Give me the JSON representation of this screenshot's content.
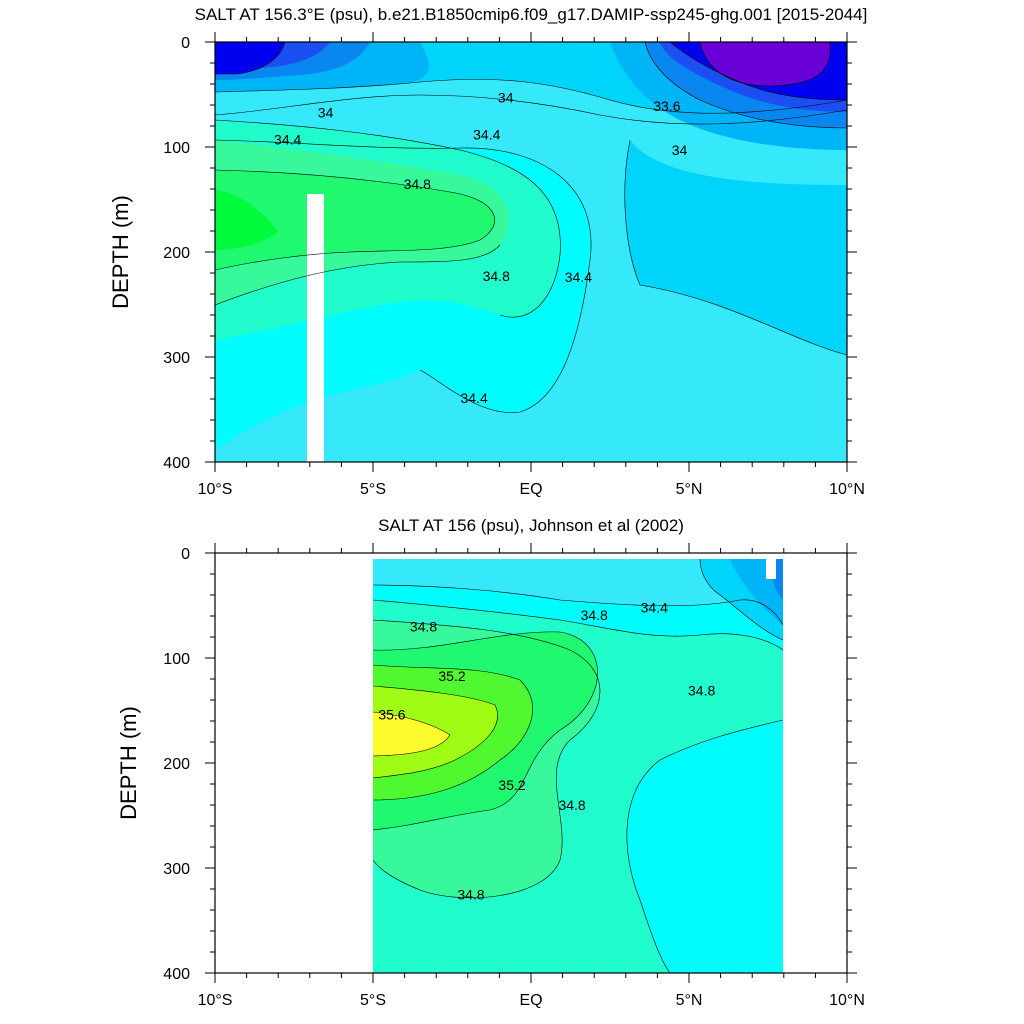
{
  "chart_data": [
    {
      "type": "heatmap",
      "title": "SALT AT 156.3°E (psu), b.e21.B1850cmip6.f09_g17.DAMIP-ssp245-ghg.001 [2015-2044]",
      "ylabel": "DEPTH (m)",
      "xlabel": "",
      "xlim": [
        -10,
        10
      ],
      "ylim": [
        0,
        400
      ],
      "y_reversed": true,
      "x_ticks": [
        -10,
        -5,
        0,
        5,
        10
      ],
      "x_tick_labels": [
        "10°S",
        "5°S",
        "EQ",
        "5°N",
        "10°N"
      ],
      "y_ticks": [
        0,
        100,
        200,
        300,
        400
      ],
      "y_tick_labels": [
        "0",
        "100",
        "200",
        "300",
        "400"
      ],
      "contour_labels": [
        {
          "text": "34",
          "x": -6.5,
          "y": 67
        },
        {
          "text": "34",
          "x": -0.8,
          "y": 53
        },
        {
          "text": "33.6",
          "x": 4.3,
          "y": 61
        },
        {
          "text": "34.4",
          "x": -7.7,
          "y": 93
        },
        {
          "text": "34.4",
          "x": -1.4,
          "y": 88
        },
        {
          "text": "34",
          "x": 4.7,
          "y": 103
        },
        {
          "text": "34.8",
          "x": -3.6,
          "y": 135
        },
        {
          "text": "34.8",
          "x": -1.1,
          "y": 223
        },
        {
          "text": "34.4",
          "x": 1.5,
          "y": 224
        },
        {
          "text": "34.4",
          "x": -1.8,
          "y": 339
        }
      ],
      "colors": {
        "deep_violet": "#6a00d8",
        "blue": "#0000f0",
        "royal_blue": "#1b4ff2",
        "medium_blue": "#0a86f0",
        "sky_blue": "#00b4f8",
        "light_blue": "#00d4fa",
        "aqua": "#35e8fa",
        "cyan": "#00fcfc",
        "aquamarine": "#20fccc",
        "sea_green": "#38f89c",
        "green": "#20f870",
        "bright_green": "#00fa3c"
      },
      "missing_band": {
        "x": [
          -7.1,
          -6.6
        ],
        "y": [
          145,
          400
        ]
      }
    },
    {
      "type": "heatmap",
      "title": "SALT AT 156 (psu), Johnson et al (2002)",
      "ylabel": "DEPTH (m)",
      "xlabel": "",
      "xlim": [
        -10,
        10
      ],
      "ylim": [
        0,
        400
      ],
      "y_reversed": true,
      "data_x_extent": [
        -5,
        8
      ],
      "x_ticks": [
        -10,
        -5,
        0,
        5,
        10
      ],
      "x_tick_labels": [
        "10°S",
        "5°S",
        "EQ",
        "5°N",
        "10°N"
      ],
      "y_ticks": [
        0,
        100,
        200,
        300,
        400
      ],
      "y_tick_labels": [
        "0",
        "100",
        "200",
        "300",
        "400"
      ],
      "contour_labels": [
        {
          "text": "34.8",
          "x": -3.4,
          "y": 70
        },
        {
          "text": "34.8",
          "x": 2.0,
          "y": 59
        },
        {
          "text": "34.4",
          "x": 3.9,
          "y": 52
        },
        {
          "text": "35.2",
          "x": -2.5,
          "y": 117
        },
        {
          "text": "35.6",
          "x": -4.4,
          "y": 154
        },
        {
          "text": "34.8",
          "x": 5.4,
          "y": 131
        },
        {
          "text": "35.2",
          "x": -0.6,
          "y": 221
        },
        {
          "text": "34.8",
          "x": 1.3,
          "y": 240
        },
        {
          "text": "34.8",
          "x": -1.9,
          "y": 325
        }
      ],
      "colors": {
        "yellow": "#fcfc2c",
        "yellow_green": "#a0fc14",
        "lime": "#50f830",
        "green": "#20f870",
        "sea_green": "#38f89c",
        "aquamarine": "#20fccc",
        "cyan": "#00fcfc",
        "aqua": "#35e8fa",
        "light_blue": "#00d4fa",
        "sky_blue": "#00b4f8",
        "medium_blue": "#0a86f0",
        "blue": "#0000f0"
      }
    }
  ]
}
